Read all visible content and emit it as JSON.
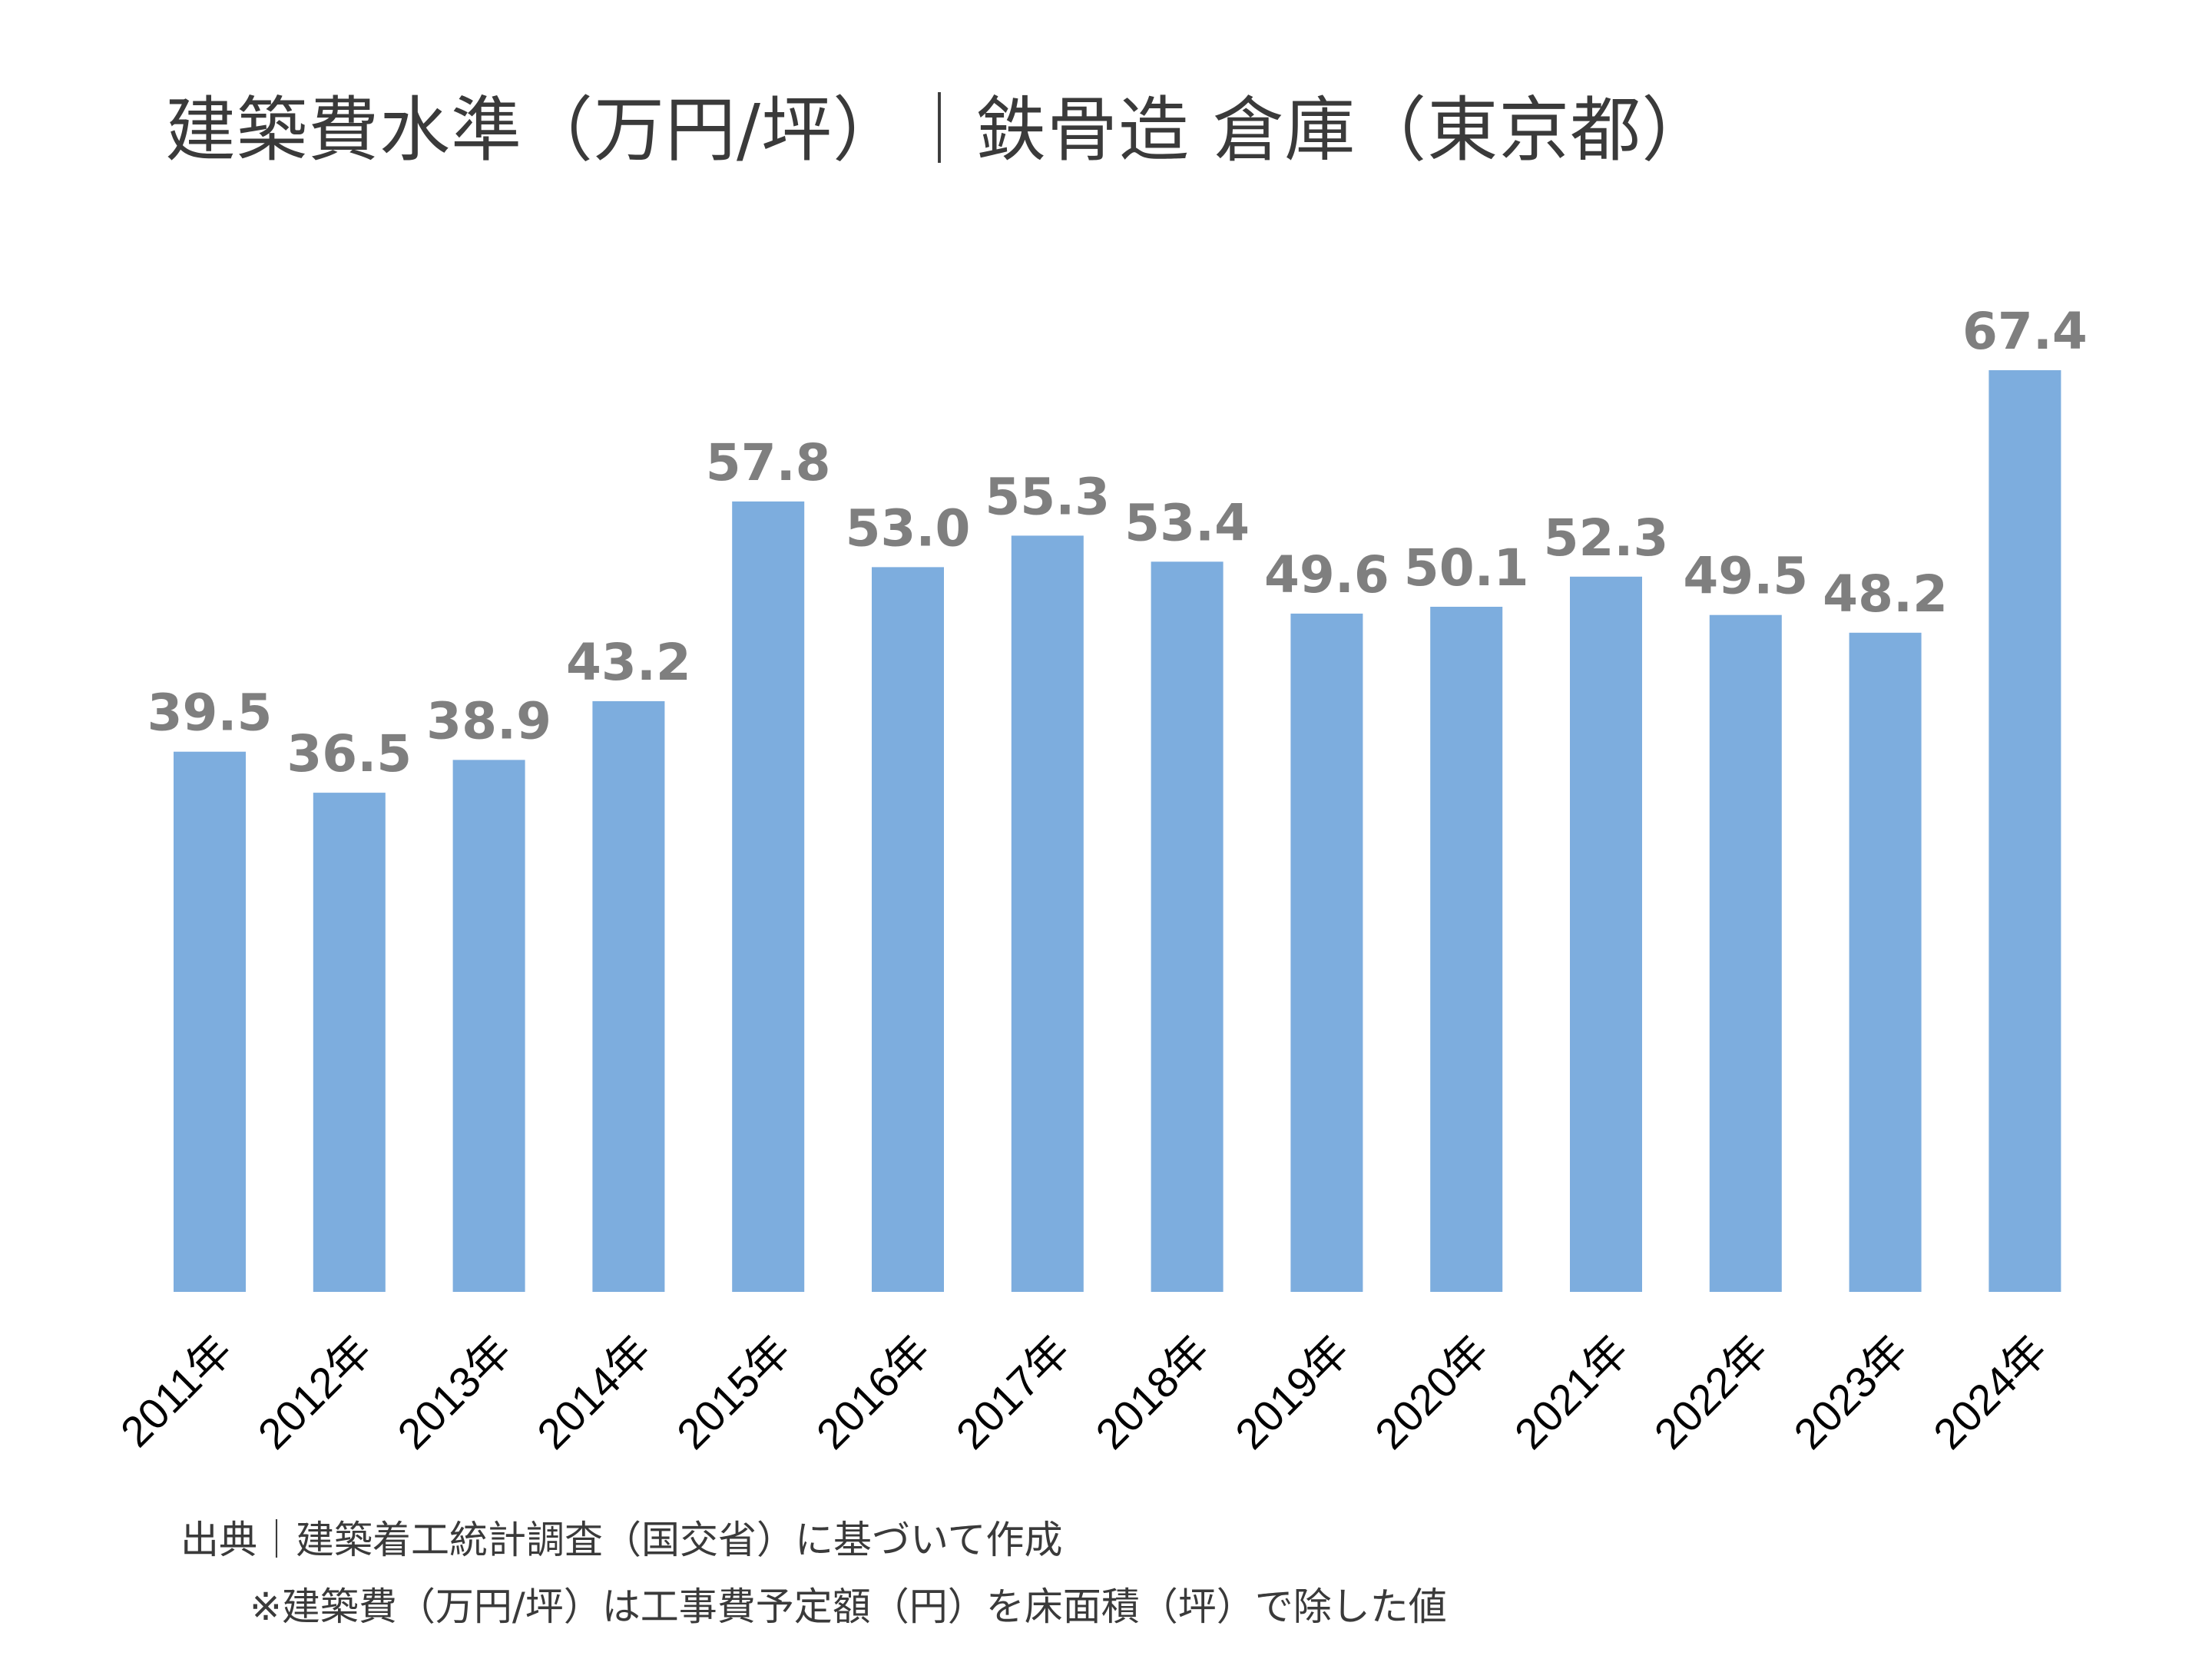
{
  "title": "建築費水準（万円/坪）｜鉄骨造 倉庫（東京都）",
  "notes": {
    "source": "出典｜建築着工統計調査（国交省）に基づいて作成",
    "method": "※建築費（万円/坪）は工事費予定額（円）を床面積（坪）で除した値"
  },
  "chart_data": {
    "type": "bar",
    "title": "建築費水準（万円/坪）｜鉄骨造 倉庫（東京都）",
    "categories": [
      "2011年",
      "2012年",
      "2013年",
      "2014年",
      "2015年",
      "2016年",
      "2017年",
      "2018年",
      "2019年",
      "2020年",
      "2021年",
      "2022年",
      "2023年",
      "2024年"
    ],
    "values": [
      39.5,
      36.5,
      38.9,
      43.2,
      57.8,
      53.0,
      55.3,
      53.4,
      49.6,
      50.1,
      52.3,
      49.5,
      48.2,
      67.4
    ],
    "value_labels": [
      "39.5",
      "36.5",
      "38.9",
      "43.2",
      "57.8",
      "53.0",
      "55.3",
      "53.4",
      "49.6",
      "50.1",
      "52.3",
      "49.5",
      "48.2",
      "67.4"
    ],
    "xlabel": "",
    "ylabel": "",
    "ylim": [
      0,
      67.4
    ],
    "grid": false,
    "legend": "none",
    "bar_color": "#7dadde",
    "label_color": "#7f7f7f"
  }
}
